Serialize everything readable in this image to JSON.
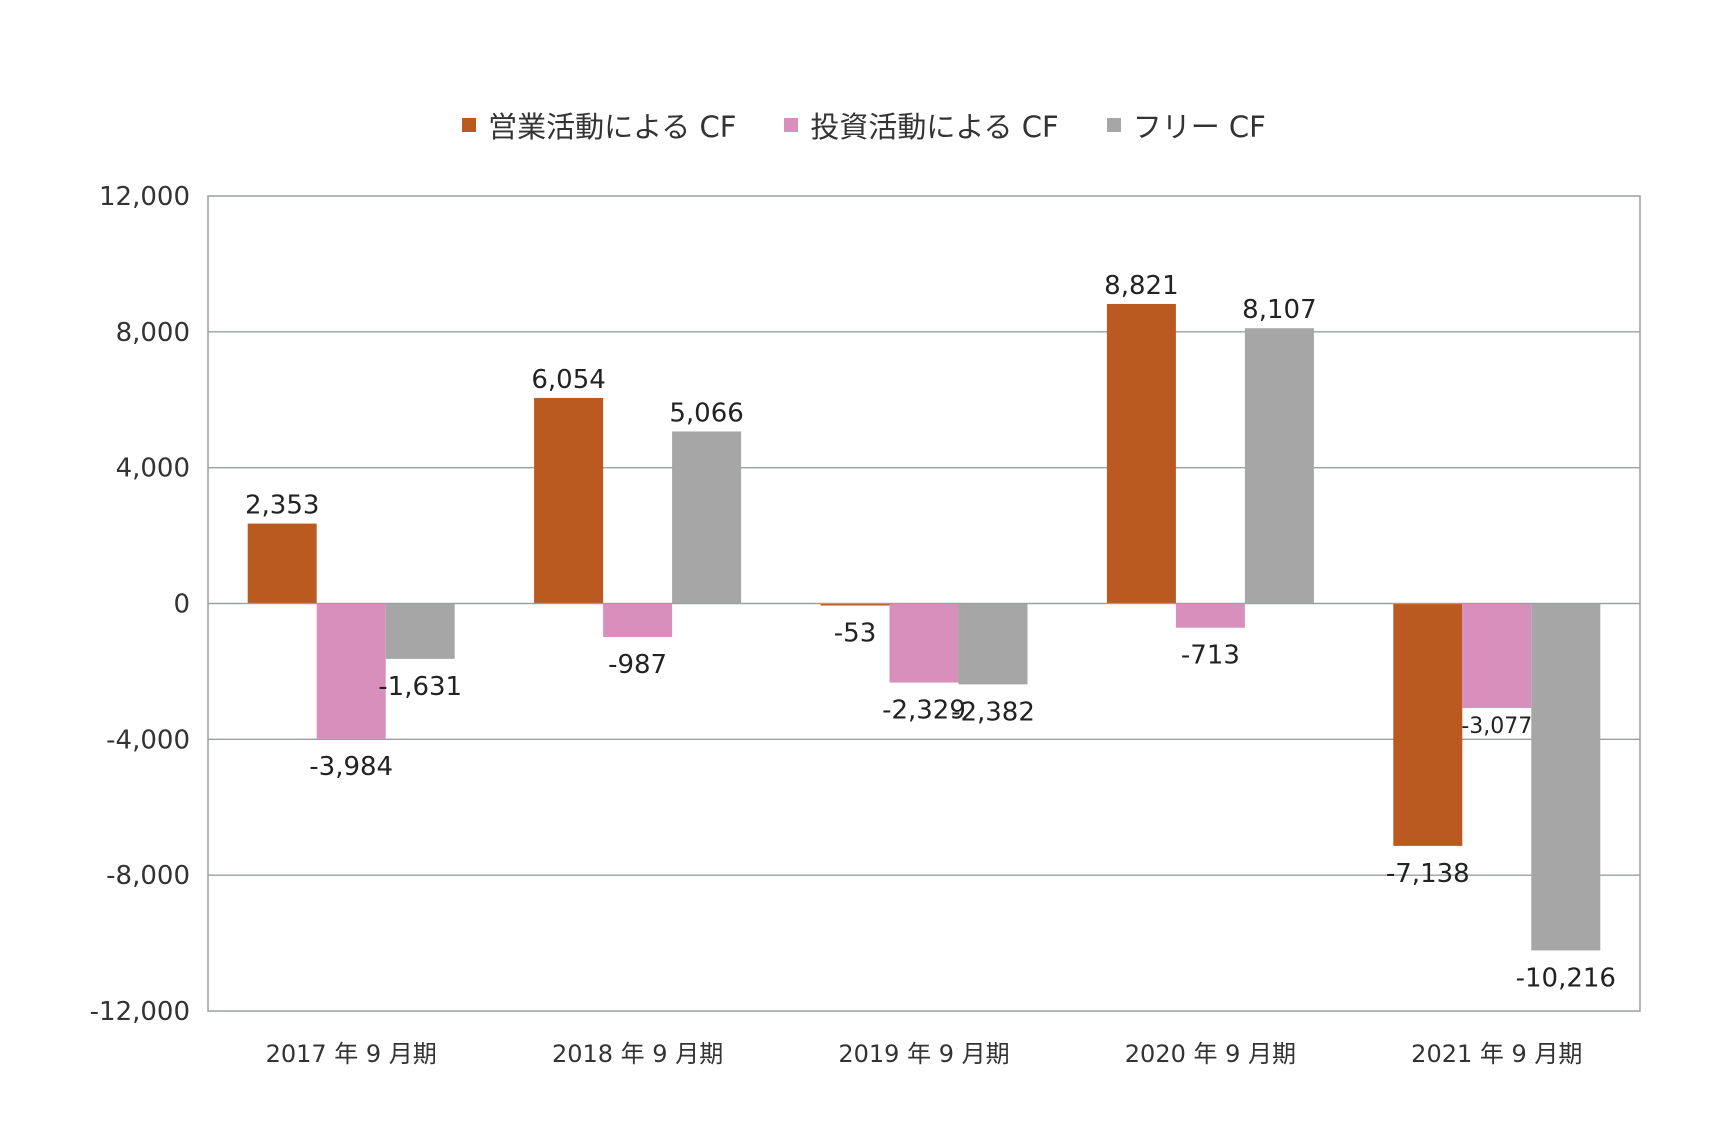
{
  "chart_data": {
    "type": "bar",
    "categories": [
      "2017 年 9 月期",
      "2018 年 9 月期",
      "2019 年 9 月期",
      "2020 年 9 月期",
      "2021 年 9 月期"
    ],
    "series": [
      {
        "name": "営業活動による CF",
        "color": "#bb5a20",
        "values": [
          2353,
          6054,
          -53,
          8821,
          -7138
        ],
        "labels": [
          "2,353",
          "6,054",
          "-53",
          "8,821",
          "-7,138"
        ]
      },
      {
        "name": "投資活動による CF",
        "color": "#d98fbb",
        "values": [
          -3984,
          -987,
          -2329,
          -713,
          -3077
        ],
        "labels": [
          "-3,984",
          "-987",
          "-2,329",
          "-713",
          "-3,077"
        ]
      },
      {
        "name": "フリー CF",
        "color": "#a6a6a6",
        "values": [
          -1631,
          5066,
          -2382,
          8107,
          -10216
        ],
        "labels": [
          "-1,631",
          "5,066",
          "-2,382",
          "8,107",
          "-10,216"
        ]
      }
    ],
    "ylim": [
      -12000,
      12000
    ],
    "yticks": [
      12000,
      8000,
      4000,
      0,
      -4000,
      -8000,
      -12000
    ],
    "ytick_labels": [
      "12,000",
      "8,000",
      "4,000",
      "0",
      "-4,000",
      "-8,000",
      "-12,000"
    ],
    "title": "",
    "xlabel": "",
    "ylabel": "",
    "legend_position": "top-center",
    "grid": true
  }
}
